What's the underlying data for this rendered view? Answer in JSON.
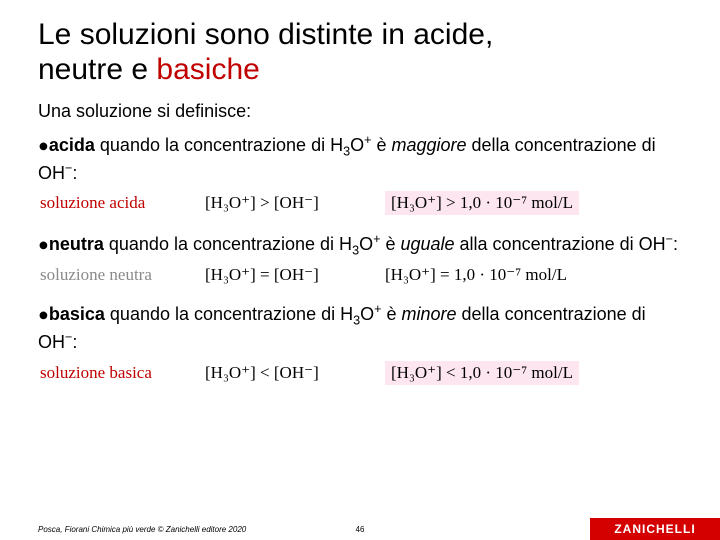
{
  "title": {
    "line1": "Le soluzioni sono distinte in acide,",
    "line2_black": "neutre e ",
    "line2_red": "basiche"
  },
  "intro": "Una soluzione si definisce:",
  "items": [
    {
      "term": "acida",
      "text1": " quando la concentrazione di H",
      "sub1": "3",
      "text2": "O",
      "sup1": "+",
      "text3": " è ",
      "emph": "maggiore",
      "text4": " della concentrazione di OH",
      "sup2": "−",
      "text5": ":",
      "formula": {
        "label": "soluzione acida",
        "label_color": "red",
        "rel_lhs": "[H₃O⁺]",
        "rel_op": ">",
        "rel_rhs": "[OH⁻]",
        "val_lhs": "[H₃O⁺]",
        "val_op": ">",
        "val_rhs": "1,0 · 10⁻⁷ mol/L",
        "highlight": true
      }
    },
    {
      "term": "neutra",
      "text1": " quando la concentrazione di H",
      "sub1": "3",
      "text2": "O",
      "sup1": "+",
      "text3": " è ",
      "emph": "uguale",
      "text4": " alla concentrazione di OH",
      "sup2": "−",
      "text5": ":",
      "formula": {
        "label": "soluzione neutra",
        "label_color": "grey",
        "rel_lhs": "[H₃O⁺]",
        "rel_op": "=",
        "rel_rhs": "[OH⁻]",
        "val_lhs": "[H₃O⁺]",
        "val_op": "=",
        "val_rhs": "1,0 · 10⁻⁷ mol/L",
        "highlight": false
      }
    },
    {
      "term": "basica",
      "text1": " quando la concentrazione di H",
      "sub1": "3",
      "text2": "O",
      "sup1": "+",
      "text3": " è ",
      "emph": "minore",
      "text4": " della concentrazione di OH",
      "sup2": "−",
      "text5": ":",
      "formula": {
        "label": "soluzione basica",
        "label_color": "red",
        "rel_lhs": "[H₃O⁺]",
        "rel_op": "<",
        "rel_rhs": "[OH⁻]",
        "val_lhs": "[H₃O⁺]",
        "val_op": "<",
        "val_rhs": "1,0 · 10⁻⁷ mol/L",
        "highlight": true
      }
    }
  ],
  "footer": {
    "credit_prefix": "Posca, Fiorani ",
    "credit_italic": "Chimica più verde",
    "credit_suffix": " © Zanichelli editore 2020",
    "page": "46",
    "brand": "ZANICHELLI"
  },
  "colors": {
    "red": "#c00000",
    "grey": "#8a8a8a",
    "highlight_bg": "#fde6ef",
    "brand_bg": "#d40000"
  }
}
